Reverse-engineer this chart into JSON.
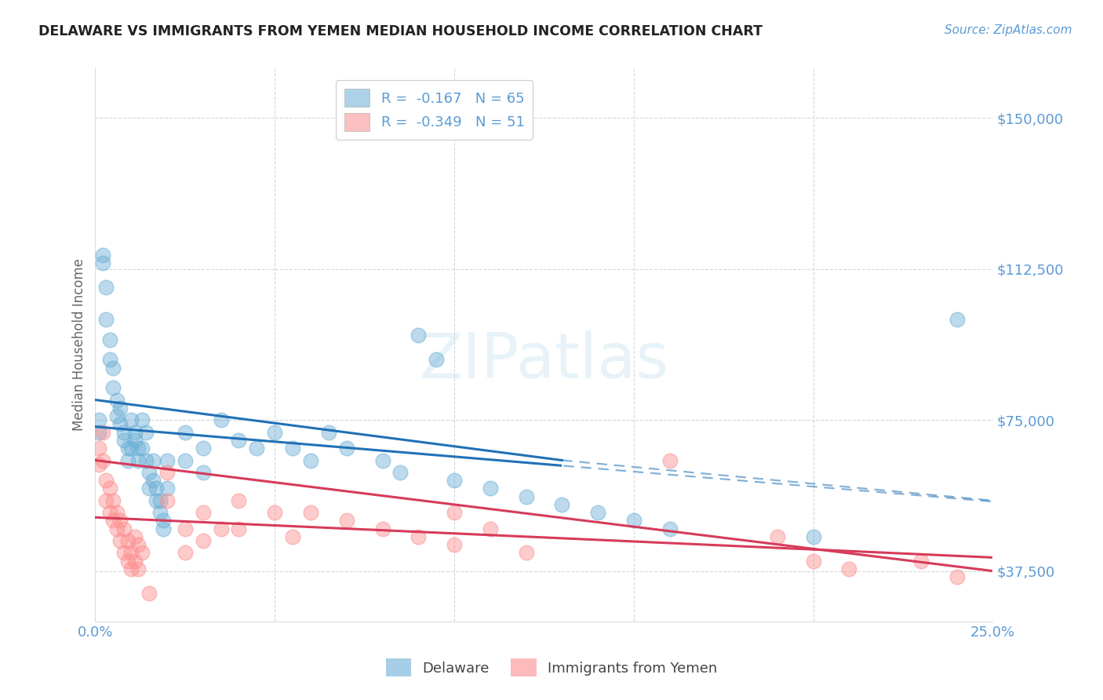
{
  "title": "DELAWARE VS IMMIGRANTS FROM YEMEN MEDIAN HOUSEHOLD INCOME CORRELATION CHART",
  "source": "Source: ZipAtlas.com",
  "ylabel": "Median Household Income",
  "xlim": [
    0.0,
    0.25
  ],
  "ylim": [
    25000,
    162500
  ],
  "ytick_vals": [
    37500,
    75000,
    112500,
    150000
  ],
  "ytick_labels": [
    "$37,500",
    "$75,000",
    "$112,500",
    "$150,000"
  ],
  "xtick_vals": [
    0.0,
    0.05,
    0.1,
    0.15,
    0.2,
    0.25
  ],
  "xtick_labels": [
    "0.0%",
    "",
    "",
    "",
    "",
    "25.0%"
  ],
  "blue_color": "#6baed6",
  "pink_color": "#fc8d8d",
  "blue_line_color": "#2171b5",
  "pink_line_color": "#d63b5a",
  "axis_label_color": "#5b9bd5",
  "background_color": "#ffffff",
  "blue_line_solid_end": 0.13,
  "delaware_points": [
    [
      0.001,
      75000
    ],
    [
      0.001,
      72000
    ],
    [
      0.002,
      116000
    ],
    [
      0.002,
      114000
    ],
    [
      0.003,
      108000
    ],
    [
      0.003,
      100000
    ],
    [
      0.004,
      95000
    ],
    [
      0.004,
      90000
    ],
    [
      0.005,
      88000
    ],
    [
      0.005,
      83000
    ],
    [
      0.006,
      80000
    ],
    [
      0.006,
      76000
    ],
    [
      0.007,
      78000
    ],
    [
      0.007,
      74000
    ],
    [
      0.008,
      72000
    ],
    [
      0.008,
      70000
    ],
    [
      0.009,
      68000
    ],
    [
      0.009,
      65000
    ],
    [
      0.01,
      75000
    ],
    [
      0.01,
      68000
    ],
    [
      0.011,
      72000
    ],
    [
      0.011,
      70000
    ],
    [
      0.012,
      68000
    ],
    [
      0.012,
      65000
    ],
    [
      0.013,
      75000
    ],
    [
      0.013,
      68000
    ],
    [
      0.014,
      72000
    ],
    [
      0.014,
      65000
    ],
    [
      0.015,
      62000
    ],
    [
      0.015,
      58000
    ],
    [
      0.016,
      65000
    ],
    [
      0.016,
      60000
    ],
    [
      0.017,
      58000
    ],
    [
      0.017,
      55000
    ],
    [
      0.018,
      55000
    ],
    [
      0.018,
      52000
    ],
    [
      0.019,
      50000
    ],
    [
      0.019,
      48000
    ],
    [
      0.02,
      65000
    ],
    [
      0.02,
      58000
    ],
    [
      0.025,
      72000
    ],
    [
      0.025,
      65000
    ],
    [
      0.03,
      68000
    ],
    [
      0.03,
      62000
    ],
    [
      0.035,
      75000
    ],
    [
      0.04,
      70000
    ],
    [
      0.045,
      68000
    ],
    [
      0.05,
      72000
    ],
    [
      0.055,
      68000
    ],
    [
      0.06,
      65000
    ],
    [
      0.065,
      72000
    ],
    [
      0.07,
      68000
    ],
    [
      0.08,
      65000
    ],
    [
      0.085,
      62000
    ],
    [
      0.09,
      96000
    ],
    [
      0.095,
      90000
    ],
    [
      0.1,
      60000
    ],
    [
      0.11,
      58000
    ],
    [
      0.12,
      56000
    ],
    [
      0.13,
      54000
    ],
    [
      0.14,
      52000
    ],
    [
      0.15,
      50000
    ],
    [
      0.16,
      48000
    ],
    [
      0.2,
      46000
    ],
    [
      0.24,
      100000
    ]
  ],
  "yemen_points": [
    [
      0.001,
      68000
    ],
    [
      0.001,
      64000
    ],
    [
      0.002,
      72000
    ],
    [
      0.002,
      65000
    ],
    [
      0.003,
      60000
    ],
    [
      0.003,
      55000
    ],
    [
      0.004,
      58000
    ],
    [
      0.004,
      52000
    ],
    [
      0.005,
      55000
    ],
    [
      0.005,
      50000
    ],
    [
      0.006,
      52000
    ],
    [
      0.006,
      48000
    ],
    [
      0.007,
      50000
    ],
    [
      0.007,
      45000
    ],
    [
      0.008,
      48000
    ],
    [
      0.008,
      42000
    ],
    [
      0.009,
      45000
    ],
    [
      0.009,
      40000
    ],
    [
      0.01,
      42000
    ],
    [
      0.01,
      38000
    ],
    [
      0.011,
      46000
    ],
    [
      0.011,
      40000
    ],
    [
      0.012,
      44000
    ],
    [
      0.012,
      38000
    ],
    [
      0.013,
      42000
    ],
    [
      0.015,
      32000
    ],
    [
      0.02,
      62000
    ],
    [
      0.02,
      55000
    ],
    [
      0.025,
      48000
    ],
    [
      0.025,
      42000
    ],
    [
      0.03,
      52000
    ],
    [
      0.03,
      45000
    ],
    [
      0.035,
      48000
    ],
    [
      0.04,
      55000
    ],
    [
      0.04,
      48000
    ],
    [
      0.05,
      52000
    ],
    [
      0.055,
      46000
    ],
    [
      0.06,
      52000
    ],
    [
      0.07,
      50000
    ],
    [
      0.08,
      48000
    ],
    [
      0.09,
      46000
    ],
    [
      0.1,
      52000
    ],
    [
      0.1,
      44000
    ],
    [
      0.11,
      48000
    ],
    [
      0.12,
      42000
    ],
    [
      0.16,
      65000
    ],
    [
      0.19,
      46000
    ],
    [
      0.2,
      40000
    ],
    [
      0.21,
      38000
    ],
    [
      0.23,
      40000
    ],
    [
      0.24,
      36000
    ]
  ]
}
